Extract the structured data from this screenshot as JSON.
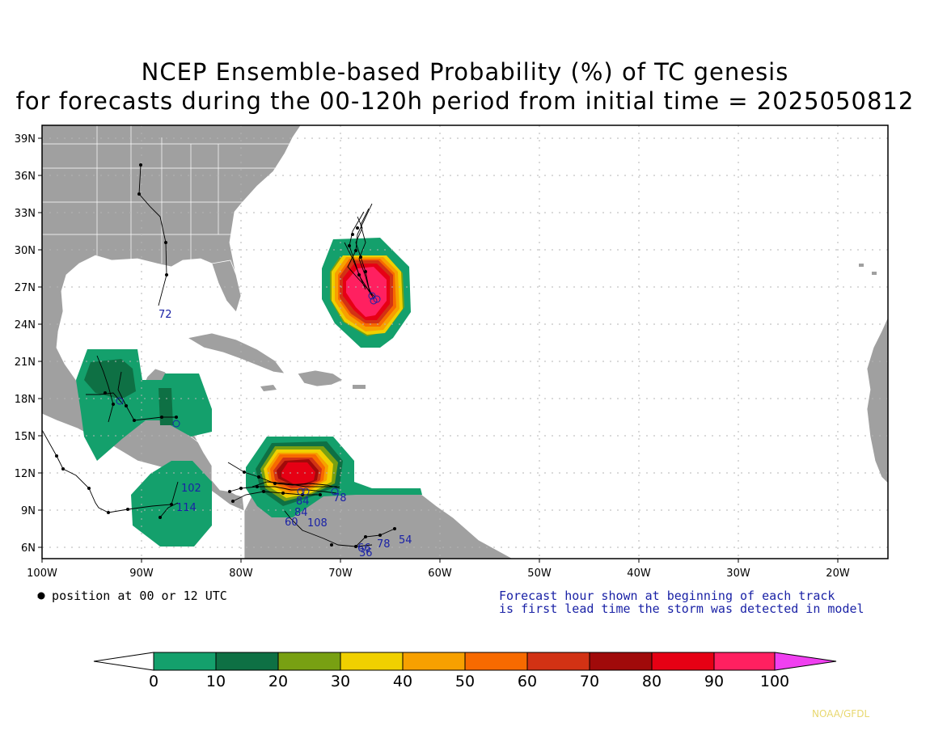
{
  "title_line1": "NCEP Ensemble-based Probability (%) of TC genesis",
  "title_line2": "for forecasts during the 00-120h period from initial time = 2025050812",
  "lat_labels": [
    "39N",
    "36N",
    "33N",
    "30N",
    "27N",
    "24N",
    "21N",
    "18N",
    "15N",
    "12N",
    "9N",
    "6N"
  ],
  "lon_labels": [
    "100W",
    "90W",
    "80W",
    "70W",
    "60W",
    "50W",
    "40W",
    "30W",
    "20W"
  ],
  "legend_note": "= position at 00 or 12 UTC",
  "forecast_note_line1": "Forecast hour shown at beginning of each track",
  "forecast_note_line2": "is first lead time the storm was detected in model",
  "credit": "NOAA/GFDL",
  "colorbar": {
    "labels": [
      "0",
      "10",
      "20",
      "30",
      "40",
      "50",
      "60",
      "70",
      "80",
      "90",
      "100"
    ],
    "colors": [
      "#14a06c",
      "#0e7044",
      "#78a012",
      "#f0d000",
      "#f7a000",
      "#f76a00",
      "#d23214",
      "#a00a0a",
      "#e60014",
      "#ff2060"
    ],
    "under_color": "#ffffff",
    "over_color": "#f040f0"
  },
  "colors": {
    "land": "#a0a0a0",
    "ocean": "#ffffff",
    "grid": "#b4b4b4",
    "track": "#000000",
    "track_label": "#1a22a6"
  },
  "track_labels": [
    "72",
    "102",
    "114",
    "84",
    "60",
    "108",
    "78",
    "54",
    "66",
    "36"
  ]
}
